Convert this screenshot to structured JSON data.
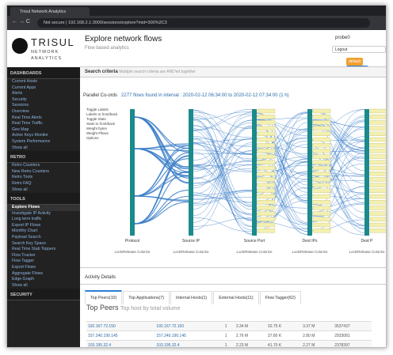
{
  "browser": {
    "tab": "Trisul Network Analytics",
    "insecure": "Not secure",
    "url": "192.168.2.1:3000/sessions/explore?mid=300%2C3"
  },
  "brand": {
    "name": "TRISUL",
    "sub": "NETWORK ANALYTICS"
  },
  "sidebar": {
    "sections": [
      {
        "title": "DASHBOARDS",
        "items": [
          "Current Hosts",
          "Current Apps",
          "Alerts",
          "Security",
          "Sessions",
          "Overview",
          "Real Time Alerts",
          "Real Time Traffic",
          "Geo Map",
          "Active Keys Monitor",
          "System Performance",
          "Show all"
        ]
      },
      {
        "title": "RETRO",
        "items": [
          "Retro Counters",
          "New Retro Counters",
          "Retro Tools",
          "Retro FAQ",
          "Show all"
        ]
      },
      {
        "title": "TOOLS",
        "items": [
          "Explore Flows",
          "Investigate IP Activity",
          "Long term traffic",
          "Export IP Flows",
          "Monthly Chart",
          "Payload Search",
          "Search Key Space",
          "Real Time Stab Toppers",
          "Flow Tracker",
          "Flow Tagger",
          "Export Flows",
          "Aggregate Flows",
          "Edge Graph",
          "Show all"
        ]
      },
      {
        "title": "SECURITY",
        "items": []
      }
    ]
  },
  "header": {
    "title": "Explore network flows",
    "subtitle": "Flow based analytics",
    "user": "probe0",
    "logout": "Logout",
    "badges": [
      "default",
      "unplprobe"
    ]
  },
  "search": {
    "title": "Search criteria",
    "hint": "Multiple search criteria are AND'ed together"
  },
  "chart": {
    "title": "Parallel Co-ords",
    "summary": "2277 flows found in interval : 2020-02-12 06:34:00 to 2020-02-12 07:34:00 (1 h)",
    "options": [
      "Toggle Labels",
      "Labels to front/back",
      "Toggle Stats",
      "Stats to front/back",
      "Weight bytes",
      "Weight #flows",
      "Options"
    ],
    "axes": [
      "Protocol",
      "Source IP",
      "Source Port",
      "Dest IPs",
      "Dest P"
    ],
    "axis_note": "Lock/Release Colorize"
  },
  "activity": {
    "title": "Activity Details",
    "tabs": [
      "Top Peers(10)",
      "Top Applications(7)",
      "Internal Hosts(1)",
      "External Hosts(11)",
      "Flow Tagger(62)"
    ],
    "heading": "Top Peers",
    "subheading": "Top host by total volume",
    "rows": [
      [
        "192.167.72.150",
        "192.167.72.150",
        "1",
        "3.34 M",
        "32.75 K",
        "3.37 M",
        "3537437"
      ],
      [
        "157.240.190.145",
        "157.240.190.145",
        "1",
        "2.76 M",
        "37.80 K",
        "2.80 M",
        "2933081"
      ],
      [
        "103.195.32.4",
        "103.195.32.4",
        "1",
        "2.23 M",
        "41.70 K",
        "2.27 M",
        "2378397"
      ]
    ]
  }
}
